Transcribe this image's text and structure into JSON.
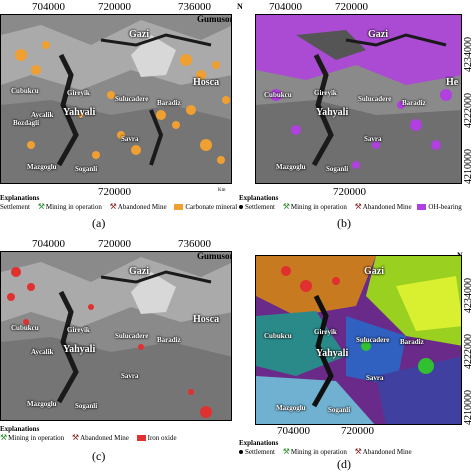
{
  "x_ticks": [
    "704000",
    "720000",
    "736000"
  ],
  "y_ticks": [
    "4234000",
    "4222000",
    "4210000"
  ],
  "places": {
    "gazi": "Gazi",
    "gumusoren": "Gumusoren",
    "hosca": "Hosca",
    "he": "He",
    "yahyali": "Yahyali",
    "gireyik": "Gireyik",
    "cubukcu": "Cubukcu",
    "bozdaglı": "Bozdagli",
    "aycalik": "Aycalik",
    "sulucadere": "Sulucadere",
    "baradiz": "Baradiz",
    "savra": "Savra",
    "mazgoglu": "Mazgoglu",
    "soganli": "Soganli"
  },
  "legend": {
    "title": "Explanations",
    "settlement": "Settlement",
    "mining": "Mining in operation",
    "abandoned": "Abandoned Mine",
    "carbonate": "Carbonate minerals",
    "ohbearing": "OH-bearing",
    "ironoxide": "Iron oxide",
    "km_label": "Km"
  },
  "captions": [
    "(a)",
    "(b)",
    "(c)",
    "(d)"
  ],
  "colors": {
    "carbonate": "#f0a030",
    "ohbearing": "#b040e0",
    "ironoxide": "#e03030"
  }
}
